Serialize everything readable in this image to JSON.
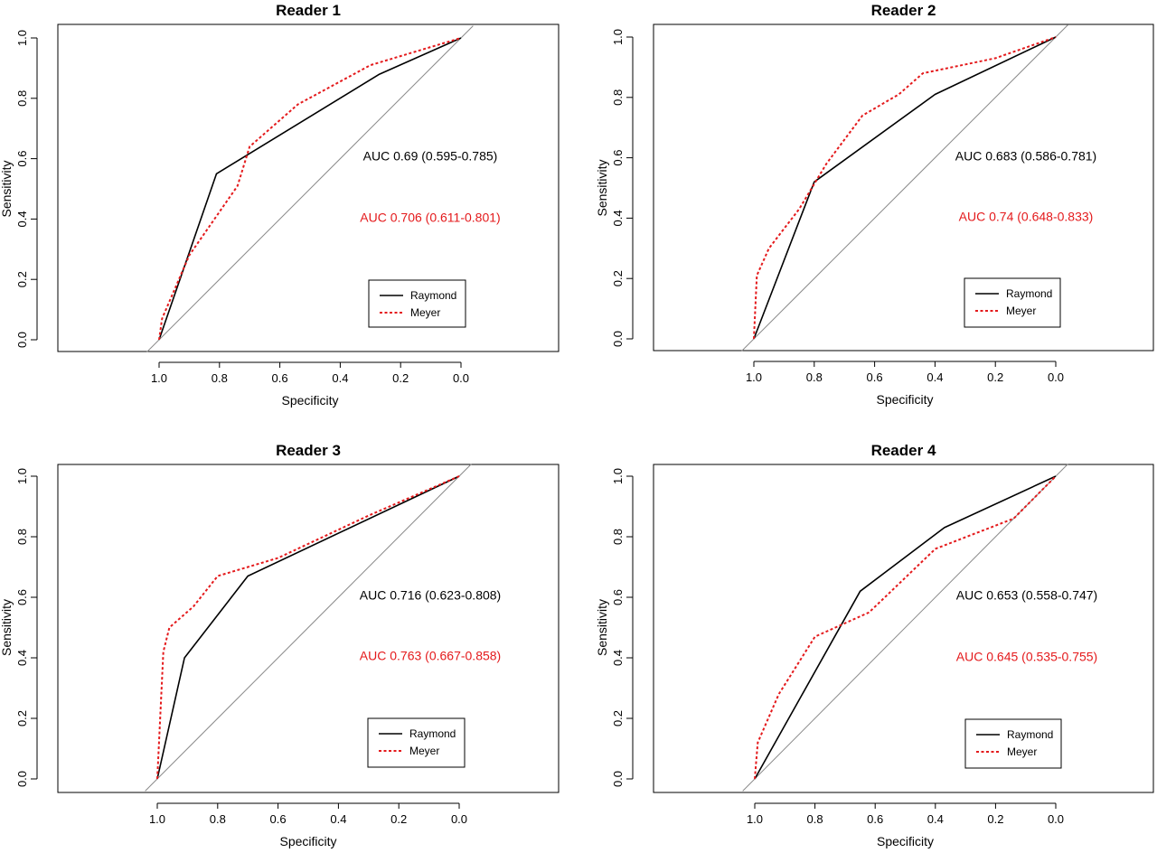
{
  "chart_data": [
    {
      "type": "line",
      "title": "Reader 1",
      "xlabel": "Specificity",
      "ylabel": "Sensitivity",
      "x_reversed": true,
      "xlim": [
        1.0,
        0.0
      ],
      "ylim": [
        0.0,
        1.0
      ],
      "xticks": [
        "1.0",
        "0.8",
        "0.6",
        "0.4",
        "0.2",
        "0.0"
      ],
      "yticks": [
        "0.0",
        "0.2",
        "0.4",
        "0.6",
        "0.8",
        "1.0"
      ],
      "legend": "bottom-right",
      "series": [
        {
          "name": "Raymond",
          "color": "#000000",
          "style": "solid",
          "x": [
            1.0,
            0.81,
            0.27,
            0.0
          ],
          "y": [
            0.0,
            0.55,
            0.88,
            1.0
          ]
        },
        {
          "name": "Meyer",
          "color": "#e41a1c",
          "style": "dotted",
          "x": [
            1.0,
            0.99,
            0.9,
            0.74,
            0.7,
            0.54,
            0.3,
            0.0
          ],
          "y": [
            0.0,
            0.07,
            0.28,
            0.51,
            0.64,
            0.78,
            0.91,
            1.0
          ]
        }
      ],
      "annotations": [
        {
          "text": "AUC 0.69 (0.595-0.785)",
          "color": "#000000"
        },
        {
          "text": "AUC 0.706 (0.611-0.801)",
          "color": "#e41a1c"
        }
      ]
    },
    {
      "type": "line",
      "title": "Reader 2",
      "xlabel": "Specificity",
      "ylabel": "Sensitivity",
      "x_reversed": true,
      "xlim": [
        1.0,
        0.0
      ],
      "ylim": [
        0.0,
        1.0
      ],
      "xticks": [
        "1.0",
        "0.8",
        "0.6",
        "0.4",
        "0.2",
        "0.0"
      ],
      "yticks": [
        "0.0",
        "0.2",
        "0.4",
        "0.6",
        "0.8",
        "1.0"
      ],
      "legend": "bottom-right",
      "series": [
        {
          "name": "Raymond",
          "color": "#000000",
          "style": "solid",
          "x": [
            1.0,
            0.8,
            0.4,
            0.0
          ],
          "y": [
            0.0,
            0.52,
            0.81,
            1.0
          ]
        },
        {
          "name": "Meyer",
          "color": "#e41a1c",
          "style": "dotted",
          "x": [
            1.0,
            0.99,
            0.95,
            0.85,
            0.76,
            0.64,
            0.52,
            0.44,
            0.2,
            0.0
          ],
          "y": [
            0.0,
            0.21,
            0.3,
            0.43,
            0.58,
            0.74,
            0.81,
            0.88,
            0.93,
            1.0
          ]
        }
      ],
      "annotations": [
        {
          "text": "AUC 0.683 (0.586-0.781)",
          "color": "#000000"
        },
        {
          "text": "AUC 0.74 (0.648-0.833)",
          "color": "#e41a1c"
        }
      ]
    },
    {
      "type": "line",
      "title": "Reader 3",
      "xlabel": "Specificity",
      "ylabel": "Sensitivity",
      "x_reversed": true,
      "xlim": [
        1.0,
        0.0
      ],
      "ylim": [
        0.0,
        1.0
      ],
      "xticks": [
        "1.0",
        "0.8",
        "0.6",
        "0.4",
        "0.2",
        "0.0"
      ],
      "yticks": [
        "0.0",
        "0.2",
        "0.4",
        "0.6",
        "0.8",
        "1.0"
      ],
      "legend": "bottom-right",
      "series": [
        {
          "name": "Raymond",
          "color": "#000000",
          "style": "solid",
          "x": [
            1.0,
            0.91,
            0.7,
            0.0
          ],
          "y": [
            0.0,
            0.4,
            0.67,
            1.0
          ]
        },
        {
          "name": "Meyer",
          "color": "#e41a1c",
          "style": "dotted",
          "x": [
            1.0,
            0.98,
            0.96,
            0.88,
            0.8,
            0.6,
            0.3,
            0.0
          ],
          "y": [
            0.0,
            0.42,
            0.5,
            0.57,
            0.67,
            0.73,
            0.87,
            1.0
          ]
        }
      ],
      "annotations": [
        {
          "text": "AUC 0.716 (0.623-0.808)",
          "color": "#000000"
        },
        {
          "text": "AUC 0.763 (0.667-0.858)",
          "color": "#e41a1c"
        }
      ]
    },
    {
      "type": "line",
      "title": "Reader 4",
      "xlabel": "Specificity",
      "ylabel": "Sensitivity",
      "x_reversed": true,
      "xlim": [
        1.0,
        0.0
      ],
      "ylim": [
        0.0,
        1.0
      ],
      "xticks": [
        "1.0",
        "0.8",
        "0.6",
        "0.4",
        "0.2",
        "0.0"
      ],
      "yticks": [
        "0.0",
        "0.2",
        "0.4",
        "0.6",
        "0.8",
        "1.0"
      ],
      "legend": "bottom-right",
      "series": [
        {
          "name": "Raymond",
          "color": "#000000",
          "style": "solid",
          "x": [
            1.0,
            0.65,
            0.37,
            0.0
          ],
          "y": [
            0.0,
            0.62,
            0.83,
            1.0
          ]
        },
        {
          "name": "Meyer",
          "color": "#e41a1c",
          "style": "dotted",
          "x": [
            1.0,
            0.99,
            0.92,
            0.8,
            0.62,
            0.4,
            0.14,
            0.0
          ],
          "y": [
            0.0,
            0.12,
            0.28,
            0.47,
            0.55,
            0.76,
            0.86,
            1.0
          ]
        }
      ],
      "annotations": [
        {
          "text": "AUC 0.653 (0.558-0.747)",
          "color": "#000000"
        },
        {
          "text": "AUC 0.645 (0.535-0.755)",
          "color": "#e41a1c"
        }
      ]
    }
  ]
}
